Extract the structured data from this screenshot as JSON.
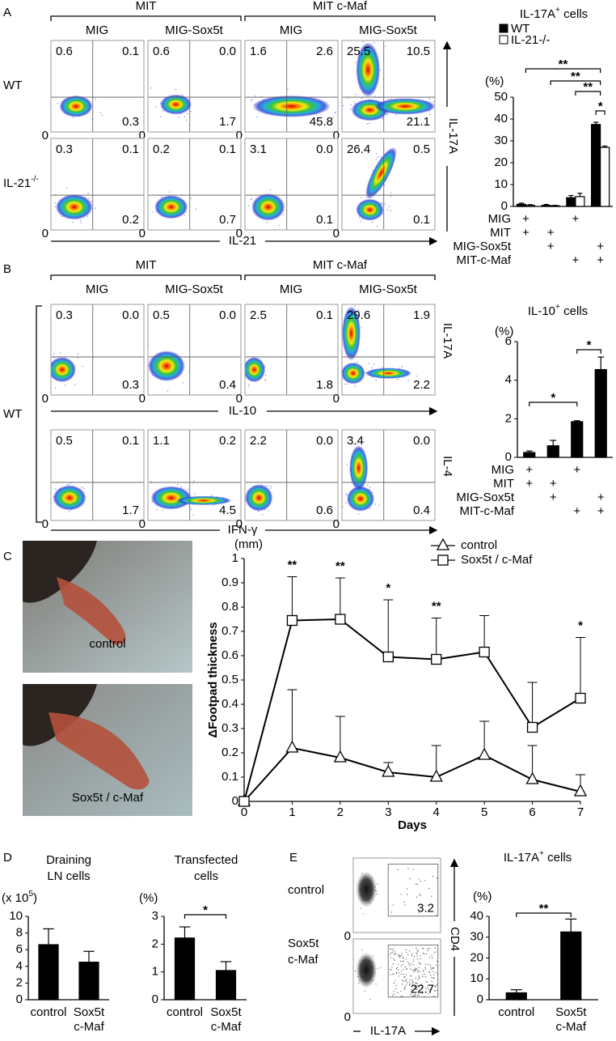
{
  "panel_a": {
    "label": "A",
    "groups": [
      "MIT",
      "MIT c-Maf"
    ],
    "columns": [
      "MIG",
      "MIG-Sox5t",
      "MIG",
      "MIG-Sox5t"
    ],
    "rows": [
      [
        {
          "t": "WT"
        }
      ],
      [
        {
          "t": "IL-21"
        },
        {
          "t": "-/-",
          "sup": true
        }
      ]
    ],
    "y_axis_label": "IL-17A",
    "x_axis_label": "IL-21",
    "origin": "0",
    "quadrants": [
      [
        [
          "0.6",
          "0.1",
          "0.3"
        ],
        [
          "0.6",
          "0.0",
          "1.7"
        ],
        [
          "1.6",
          "2.6",
          "45.8"
        ],
        [
          "25.5",
          "10.5",
          "21.1"
        ]
      ],
      [
        [
          "0.3",
          "0.1",
          "0.2"
        ],
        [
          "0.2",
          "0.1",
          "0.7"
        ],
        [
          "3.1",
          "0.0",
          "0.1"
        ],
        [
          "26.4",
          "0.5",
          "0.1"
        ]
      ]
    ],
    "chart": {
      "title": [
        {
          "t": "IL-17A"
        },
        {
          "t": "+",
          "sup": true
        },
        {
          "t": " cells"
        }
      ],
      "unit": "(%)",
      "ylim": [
        0,
        50
      ],
      "yticks": [
        0,
        10,
        20,
        30,
        40,
        50
      ],
      "series": [
        {
          "name": "WT",
          "color": "#000000",
          "values": [
            1,
            0.5,
            4,
            37.5
          ],
          "errors": [
            0.5,
            0.4,
            1,
            1
          ]
        },
        {
          "name": "IL-21-/-",
          "color": "#ffffff",
          "values": [
            0.5,
            0.3,
            4.5,
            27
          ],
          "errors": [
            0.3,
            0.2,
            1.5,
            0.6
          ]
        }
      ],
      "significance": [
        "**",
        "**",
        "**",
        "*"
      ],
      "conditions": {
        "labels": [
          "MIG",
          "MIT",
          "MIG-Sox5t",
          "MIT-c-Maf"
        ],
        "marks": [
          [
            "+",
            null,
            "+",
            null
          ],
          [
            "+",
            "+",
            null,
            null
          ],
          [
            null,
            "+",
            null,
            "+"
          ],
          [
            null,
            null,
            "+",
            "+"
          ]
        ]
      }
    }
  },
  "panel_b": {
    "label": "B",
    "groups": [
      "MIT",
      "MIT c-Maf"
    ],
    "columns": [
      "MIG",
      "MIG-Sox5t",
      "MIG",
      "MIG-Sox5t"
    ],
    "row_group_label": "WT",
    "y_axis_labels": [
      "IL-17A",
      "IL-4"
    ],
    "x_axis_labels": [
      "IL-10",
      "IFN-γ"
    ],
    "origin": "0",
    "quadrants": [
      [
        [
          "0.3",
          "0.0",
          "0.3"
        ],
        [
          "0.5",
          "0.0",
          "0.4"
        ],
        [
          "2.5",
          "0.1",
          "1.8"
        ],
        [
          "29.6",
          "1.9",
          "2.2"
        ]
      ],
      [
        [
          "0.5",
          "0.1",
          "1.7"
        ],
        [
          "1.1",
          "0.2",
          "4.5"
        ],
        [
          "2.2",
          "0.0",
          "0.6"
        ],
        [
          "3.4",
          "0.0",
          "0.4"
        ]
      ]
    ],
    "chart": {
      "title": [
        {
          "t": "IL-10"
        },
        {
          "t": "+",
          "sup": true
        },
        {
          "t": " cells"
        }
      ],
      "unit": "(%)",
      "ylim": [
        0,
        6
      ],
      "yticks": [
        0,
        2,
        4,
        6
      ],
      "color": "#000000",
      "values": [
        0.25,
        0.6,
        1.85,
        4.55
      ],
      "errors": [
        0.08,
        0.28,
        0.05,
        0.65
      ],
      "significance": [
        "*",
        "*"
      ],
      "conditions": {
        "labels": [
          "MIG",
          "MIT",
          "MIG-Sox5t",
          "MIT-c-Maf"
        ],
        "marks": [
          [
            "+",
            null,
            "+",
            null
          ],
          [
            "+",
            "+",
            null,
            null
          ],
          [
            null,
            "+",
            null,
            "+"
          ],
          [
            null,
            null,
            "+",
            "+"
          ]
        ]
      }
    }
  },
  "panel_c": {
    "label": "C",
    "photos": [
      "control",
      "Sox5t / c-Maf"
    ],
    "chart": {
      "type": "line",
      "unit": "(mm)",
      "y_label": "ΔFootpad thickness",
      "x_label": "Days",
      "x": [
        0,
        1,
        2,
        3,
        4,
        5,
        6,
        7
      ],
      "xlim": [
        0,
        7
      ],
      "xticks": [
        0,
        1,
        2,
        3,
        4,
        5,
        6,
        7
      ],
      "ylim": [
        0,
        1
      ],
      "yticks": [
        0,
        0.1,
        0.2,
        0.3,
        0.4,
        0.5,
        0.6,
        0.7,
        0.8,
        0.9,
        1
      ],
      "series": [
        {
          "name": "control",
          "marker": "triangle",
          "color": "#000000",
          "values": [
            0,
            0.22,
            0.18,
            0.12,
            0.1,
            0.19,
            0.09,
            0.04
          ],
          "errors": [
            0,
            0.24,
            0.17,
            0.04,
            0.13,
            0.14,
            0.14,
            0.07
          ]
        },
        {
          "name": "Sox5t / c-Maf",
          "marker": "square",
          "color": "#000000",
          "values": [
            0,
            0.745,
            0.75,
            0.595,
            0.585,
            0.615,
            0.305,
            0.425
          ],
          "errors": [
            0,
            0.18,
            0.17,
            0.235,
            0.17,
            0.15,
            0.185,
            0.25
          ]
        }
      ],
      "significance": [
        null,
        "**",
        "**",
        "*",
        "**",
        null,
        null,
        "*"
      ]
    }
  },
  "panel_d": {
    "label": "D",
    "charts": [
      {
        "title": [
          "Draining",
          "LN cells"
        ],
        "unit": [
          {
            "t": "(x 10"
          },
          {
            "t": "5",
            "sup": true
          },
          {
            "t": ")"
          }
        ],
        "categories": [
          [
            "control"
          ],
          [
            "Sox5t",
            "c-Maf"
          ]
        ],
        "ylim": [
          0,
          10
        ],
        "yticks": [
          0,
          2,
          4,
          6,
          8,
          10
        ],
        "color": "#000000",
        "values": [
          6.6,
          4.5
        ],
        "errors": [
          1.9,
          1.3
        ]
      },
      {
        "title": [
          "Transfected",
          "cells"
        ],
        "unit": [
          {
            "t": "(%)"
          }
        ],
        "categories": [
          [
            "control"
          ],
          [
            "Sox5t",
            "c-Maf"
          ]
        ],
        "ylim": [
          0,
          3
        ],
        "yticks": [
          0,
          1,
          2,
          3
        ],
        "color": "#000000",
        "values": [
          2.22,
          1.05
        ],
        "errors": [
          0.4,
          0.32
        ],
        "significance": [
          "*"
        ]
      }
    ]
  },
  "panel_e": {
    "label": "E",
    "rows": [
      [
        "control"
      ],
      [
        "Sox5t",
        "c-Maf"
      ]
    ],
    "gates": [
      "3.2",
      "22.7"
    ],
    "y_axis_label": "CD4",
    "x_axis_label": "IL-17A",
    "origin": "0",
    "chart": {
      "title": [
        {
          "t": "IL-17A"
        },
        {
          "t": "+",
          "sup": true
        },
        {
          "t": " cells"
        }
      ],
      "unit": [
        {
          "t": "(%)"
        }
      ],
      "categories": [
        [
          "control"
        ],
        [
          "Sox5t",
          "c-Maf"
        ]
      ],
      "ylim": [
        0,
        40
      ],
      "yticks": [
        0,
        10,
        20,
        30,
        40
      ],
      "color": "#000000",
      "values": [
        3.3,
        32.5
      ],
      "errors": [
        1.5,
        6.2
      ],
      "significance": [
        "**"
      ]
    }
  }
}
